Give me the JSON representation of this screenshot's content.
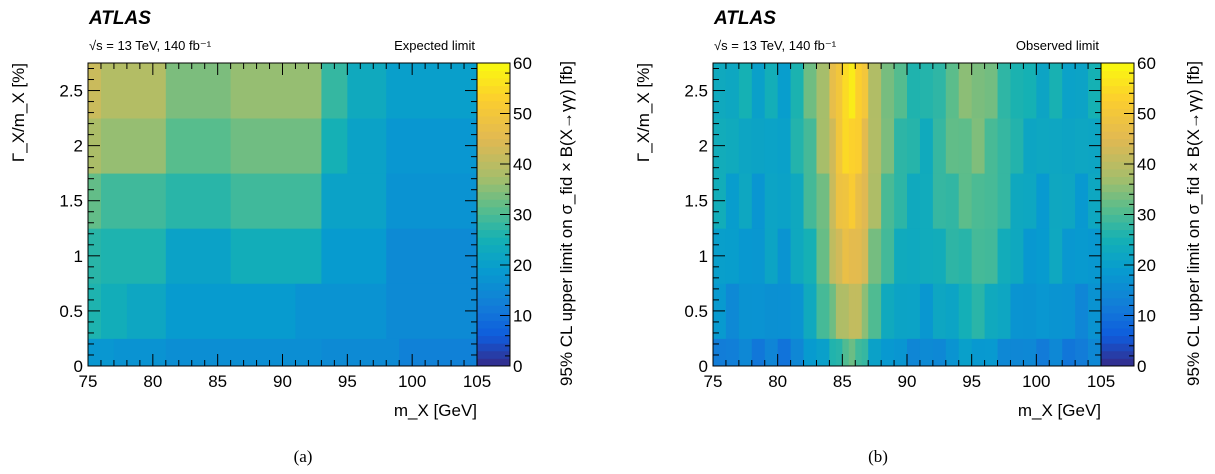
{
  "chart_data": [
    {
      "type": "heatmap",
      "experiment": "ATLAS",
      "label": "√s = 13 TeV, 140 fb⁻¹",
      "title": "Expected limit",
      "xlabel": "m_X [GeV]",
      "ylabel": "Γ_X/m_X [%]",
      "zlabel": "95% CL upper limit on σ_fid × B(X→γγ) [fb]",
      "xlim": [
        75,
        105
      ],
      "ylim": [
        0,
        2.75
      ],
      "zlim": [
        0,
        60
      ],
      "x_ticks": [
        "75",
        "80",
        "85",
        "90",
        "95",
        "100",
        "105"
      ],
      "y_ticks": [
        "0",
        "0.5",
        "1",
        "1.5",
        "2",
        "2.5"
      ],
      "z_ticks": [
        "0",
        "10",
        "20",
        "30",
        "40",
        "50",
        "60"
      ],
      "y_bins": [
        0,
        0.25,
        0.75,
        1.25,
        1.75,
        2.25,
        2.75
      ],
      "cells": [
        {
          "y": [
            0,
            0.25
          ],
          "segments": [
            [
              75,
              77,
              18
            ],
            [
              77,
              81,
              17
            ],
            [
              81,
              93,
              16
            ],
            [
              93,
              99,
              15
            ],
            [
              99,
              105,
              13
            ]
          ]
        },
        {
          "y": [
            0.25,
            0.75
          ],
          "segments": [
            [
              75,
              76,
              26
            ],
            [
              76,
              78,
              24
            ],
            [
              78,
              81,
              22
            ],
            [
              81,
              91,
              19
            ],
            [
              91,
              98,
              17
            ],
            [
              98,
              105,
              15
            ]
          ]
        },
        {
          "y": [
            0.75,
            1.25
          ],
          "segments": [
            [
              75,
              76,
              27
            ],
            [
              76,
              81,
              26
            ],
            [
              81,
              86,
              21
            ],
            [
              86,
              93,
              24
            ],
            [
              93,
              98,
              19
            ],
            [
              98,
              105,
              15
            ]
          ]
        },
        {
          "y": [
            1.25,
            1.75
          ],
          "segments": [
            [
              75,
              76,
              32
            ],
            [
              76,
              81,
              29
            ],
            [
              81,
              86,
              27
            ],
            [
              86,
              93,
              29
            ],
            [
              93,
              98,
              21
            ],
            [
              98,
              105,
              17
            ]
          ]
        },
        {
          "y": [
            1.75,
            2.25
          ],
          "segments": [
            [
              75,
              76,
              38
            ],
            [
              76,
              81,
              36
            ],
            [
              81,
              86,
              31
            ],
            [
              86,
              93,
              33
            ],
            [
              93,
              95,
              25
            ],
            [
              95,
              98,
              21
            ],
            [
              98,
              105,
              18
            ]
          ]
        },
        {
          "y": [
            2.25,
            2.75
          ],
          "segments": [
            [
              75,
              76,
              42
            ],
            [
              76,
              81,
              39
            ],
            [
              81,
              86,
              34
            ],
            [
              86,
              93,
              36
            ],
            [
              93,
              95,
              28
            ],
            [
              95,
              98,
              23
            ],
            [
              98,
              105,
              20
            ]
          ]
        }
      ],
      "caption": "(a)"
    },
    {
      "type": "heatmap",
      "experiment": "ATLAS",
      "label": "√s = 13 TeV, 140 fb⁻¹",
      "title": "Observed limit",
      "xlabel": "m_X [GeV]",
      "ylabel": "Γ_X/m_X [%]",
      "zlabel": "95% CL upper limit on σ_fid × B(X→γγ) [fb]",
      "xlim": [
        75,
        105
      ],
      "ylim": [
        0,
        2.75
      ],
      "zlim": [
        0,
        60
      ],
      "x_ticks": [
        "75",
        "80",
        "85",
        "90",
        "95",
        "100",
        "105"
      ],
      "y_ticks": [
        "0",
        "0.5",
        "1",
        "1.5",
        "2",
        "2.5"
      ],
      "z_ticks": [
        "0",
        "10",
        "20",
        "30",
        "40",
        "50",
        "60"
      ],
      "y_bins": [
        0,
        0.25,
        0.75,
        1.25,
        1.75,
        2.25,
        2.75
      ],
      "x_profile": [
        {
          "x": [
            75,
            76
          ],
          "v": 22
        },
        {
          "x": [
            76,
            77
          ],
          "v": 20
        },
        {
          "x": [
            77,
            78
          ],
          "v": 21
        },
        {
          "x": [
            78,
            79
          ],
          "v": 19
        },
        {
          "x": [
            79,
            80
          ],
          "v": 21
        },
        {
          "x": [
            80,
            81
          ],
          "v": 19
        },
        {
          "x": [
            81,
            82
          ],
          "v": 23
        },
        {
          "x": [
            82,
            83
          ],
          "v": 28
        },
        {
          "x": [
            83,
            84
          ],
          "v": 34
        },
        {
          "x": [
            84,
            84.5
          ],
          "v": 41
        },
        {
          "x": [
            84.5,
            85
          ],
          "v": 46
        },
        {
          "x": [
            85,
            85.5
          ],
          "v": 49
        },
        {
          "x": [
            85.5,
            86
          ],
          "v": 50
        },
        {
          "x": [
            86,
            86.5
          ],
          "v": 48
        },
        {
          "x": [
            86.5,
            87
          ],
          "v": 44
        },
        {
          "x": [
            87,
            88
          ],
          "v": 36
        },
        {
          "x": [
            88,
            89
          ],
          "v": 30
        },
        {
          "x": [
            89,
            90
          ],
          "v": 26
        },
        {
          "x": [
            90,
            91
          ],
          "v": 24
        },
        {
          "x": [
            91,
            92
          ],
          "v": 23
        },
        {
          "x": [
            92,
            93
          ],
          "v": 26
        },
        {
          "x": [
            93,
            94
          ],
          "v": 28
        },
        {
          "x": [
            94,
            95
          ],
          "v": 30
        },
        {
          "x": [
            95,
            96
          ],
          "v": 31
        },
        {
          "x": [
            96,
            97
          ],
          "v": 29
        },
        {
          "x": [
            97,
            98
          ],
          "v": 26
        },
        {
          "x": [
            98,
            99
          ],
          "v": 23
        },
        {
          "x": [
            99,
            100
          ],
          "v": 21
        },
        {
          "x": [
            100,
            101
          ],
          "v": 20
        },
        {
          "x": [
            101,
            102
          ],
          "v": 22
        },
        {
          "x": [
            102,
            103
          ],
          "v": 20
        },
        {
          "x": [
            103,
            104
          ],
          "v": 19
        },
        {
          "x": [
            104,
            105
          ],
          "v": 21
        }
      ],
      "y_scale": [
        0.62,
        0.82,
        0.95,
        1.02,
        1.08,
        1.12
      ],
      "caption": "(b)"
    }
  ]
}
